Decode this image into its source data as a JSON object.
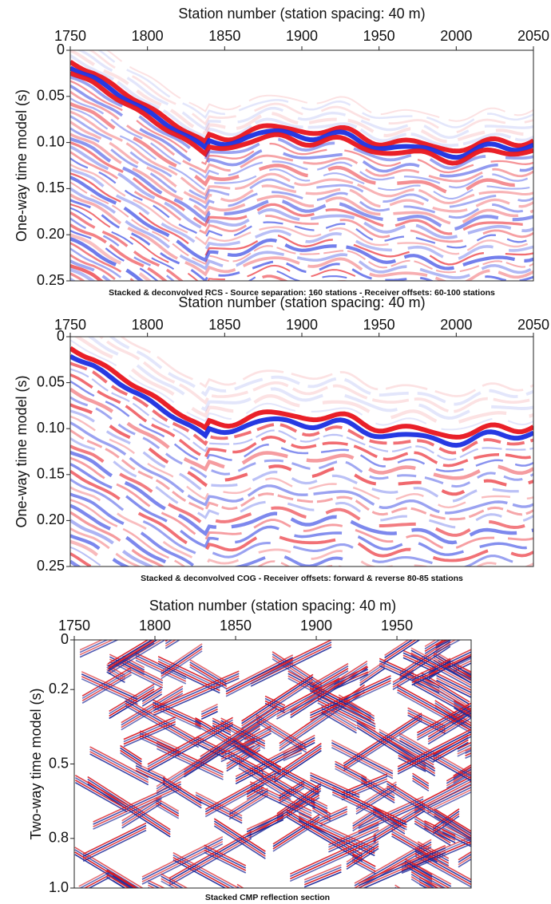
{
  "chart_data": [
    {
      "type": "seismic",
      "title": "Stacked & deconvolved RCS - Source separation: 160 stations - Receiver offsets: 60-100 stations",
      "x_label": "Station number (station spacing: 40 m)",
      "y_label": "One-way time model (s)",
      "xlim": [
        1750,
        2050
      ],
      "xticks": [
        1750,
        1800,
        1850,
        1900,
        1950,
        2000,
        2050
      ],
      "ylim": [
        0,
        0.25
      ],
      "yticks": [
        0,
        0.05,
        {
          "value": 0.1,
          "label": "0.10"
        },
        0.15,
        {
          "value": 0.2,
          "label": "0.20"
        },
        0.25
      ],
      "colors": [
        "#e8141c",
        "#1a2ee0"
      ]
    },
    {
      "type": "seismic",
      "title": "Stacked & deconvolved COG - Receiver offsets: forward & reverse 80-85 stations",
      "x_label": "Station number (station spacing: 40 m)",
      "y_label": "One-way time model (s)",
      "xlim": [
        1750,
        2050
      ],
      "xticks": [
        1750,
        1800,
        1850,
        1900,
        1950,
        2000,
        2050
      ],
      "ylim": [
        0,
        0.25
      ],
      "yticks": [
        0,
        0.05,
        {
          "value": 0.1,
          "label": "0.10"
        },
        0.15,
        {
          "value": 0.2,
          "label": "0.20"
        },
        0.25
      ],
      "colors": [
        "#e8141c",
        "#1a2ee0"
      ]
    },
    {
      "type": "seismic",
      "title": "Stacked CMP reflection section",
      "x_label": "Station number (station spacing: 40 m)",
      "y_label": "Two-way time model (s)",
      "xlim": [
        1750,
        1996
      ],
      "xticks": [
        1750,
        1800,
        1850,
        1900,
        1950
      ],
      "ylim": [
        0,
        1
      ],
      "yticks": [
        0,
        0.2,
        0.5,
        0.8,
        {
          "value": 1,
          "label": "1.0"
        }
      ],
      "colors": [
        "#d81820",
        "#1e2a9a"
      ]
    }
  ]
}
